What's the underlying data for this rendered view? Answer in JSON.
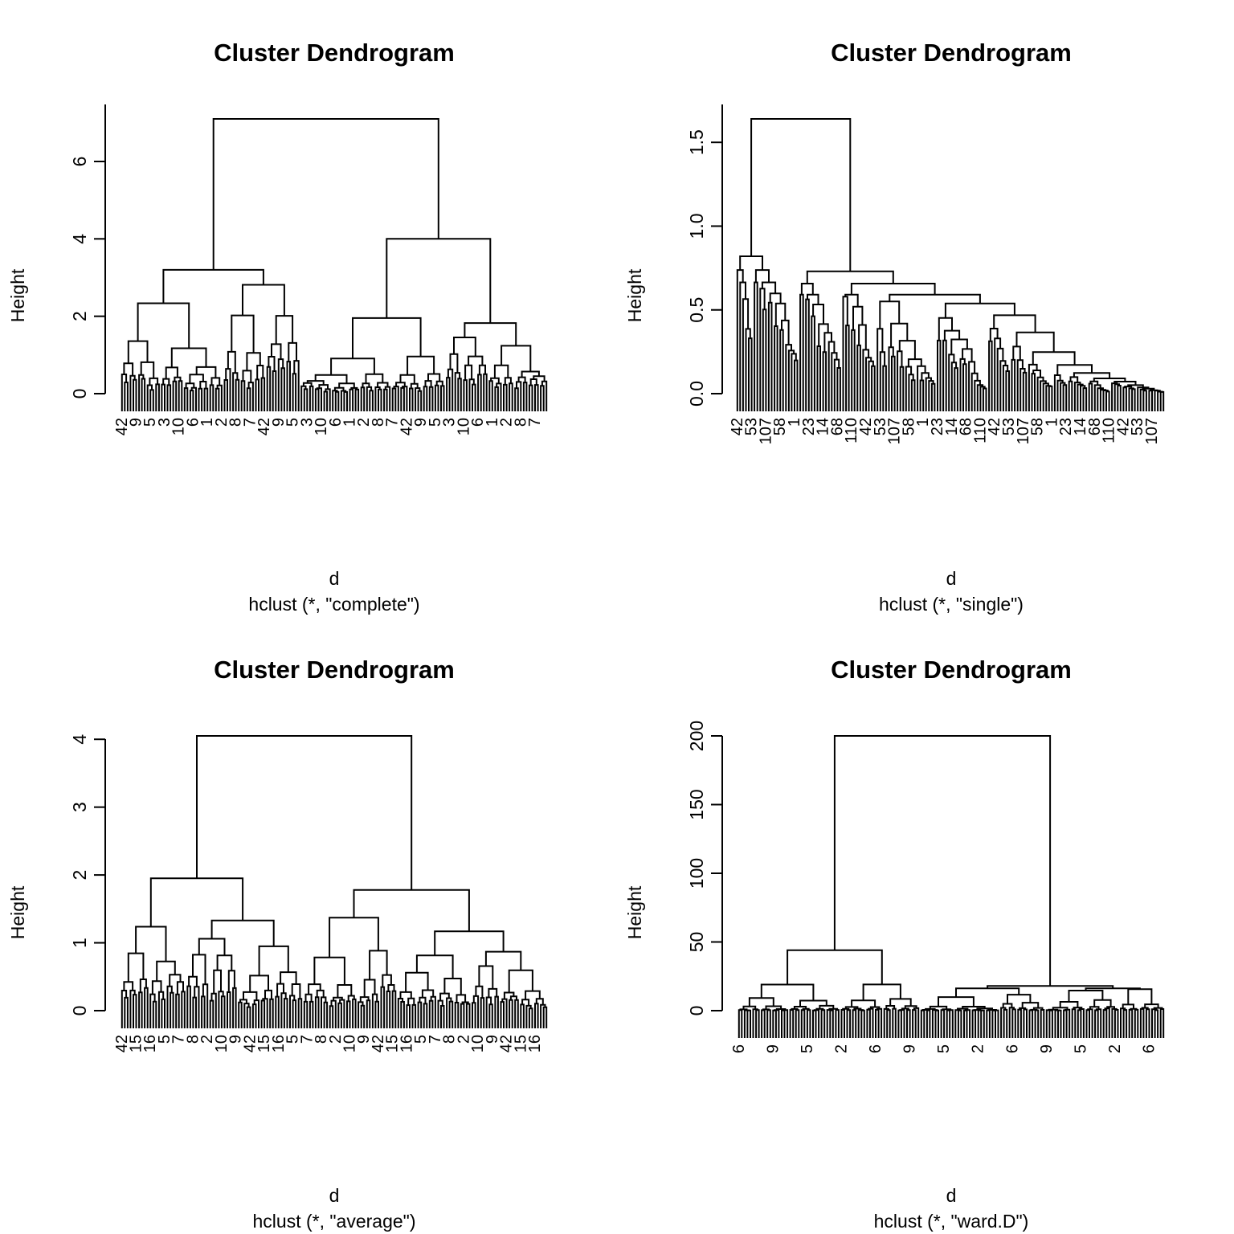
{
  "chart_data": [
    {
      "type": "dendrogram",
      "title": "Cluster Dendrogram",
      "xlabel": "d",
      "sub": "hclust (*, \"complete\")",
      "ylabel": "Height",
      "ylim": [
        0,
        7.1
      ],
      "yticks": [
        "0",
        "2",
        "4",
        "6"
      ],
      "ytick_values": [
        0,
        2,
        4,
        6
      ],
      "major_merges": [
        {
          "height": 7.1,
          "left": 1,
          "right": 2
        },
        {
          "height": 3.2,
          "left": 3,
          "right": 4
        },
        {
          "height": 4.0,
          "left": 5,
          "right": 6
        },
        {
          "height": 2.2
        },
        {
          "height": 2.4
        },
        {
          "height": 1.7
        },
        {
          "height": 1.45
        }
      ],
      "n_leaves": 150,
      "visible_leaf_labels": [
        "42",
        "9",
        "5",
        "3",
        "10",
        "6",
        "1",
        "2",
        "8",
        "7"
      ]
    },
    {
      "type": "dendrogram",
      "title": "Cluster Dendrogram",
      "xlabel": "d",
      "sub": "hclust (*, \"single\")",
      "ylabel": "Height",
      "ylim": [
        0,
        1.64
      ],
      "yticks": [
        "0.0",
        "0.5",
        "1.0",
        "1.5"
      ],
      "ytick_values": [
        0,
        0.5,
        1.0,
        1.5
      ],
      "major_merges": [
        {
          "height": 1.64
        },
        {
          "height": 0.82
        },
        {
          "height": 0.73
        },
        {
          "height": 0.63
        },
        {
          "height": 0.35
        }
      ],
      "n_leaves": 150,
      "visible_leaf_labels": [
        "42",
        "53",
        "107",
        "58",
        "1",
        "23",
        "14",
        "68",
        "110"
      ]
    },
    {
      "type": "dendrogram",
      "title": "Cluster Dendrogram",
      "xlabel": "d",
      "sub": "hclust (*, \"average\")",
      "ylabel": "Height",
      "ylim": [
        0,
        4.05
      ],
      "yticks": [
        "0",
        "1",
        "2",
        "3",
        "4"
      ],
      "ytick_values": [
        0,
        1,
        2,
        3,
        4
      ],
      "major_merges": [
        {
          "height": 4.05
        },
        {
          "height": 1.95
        },
        {
          "height": 1.78
        },
        {
          "height": 1.32
        },
        {
          "height": 1.18
        },
        {
          "height": 1.08
        }
      ],
      "n_leaves": 150,
      "visible_leaf_labels": [
        "42",
        "15",
        "16",
        "5",
        "7",
        "8",
        "2",
        "10",
        "9"
      ]
    },
    {
      "type": "dendrogram",
      "title": "Cluster Dendrogram",
      "xlabel": "d",
      "sub": "hclust (*, \"ward.D\")",
      "ylabel": "Height",
      "ylim": [
        0,
        200
      ],
      "yticks": [
        "0",
        "50",
        "100",
        "150",
        "200"
      ],
      "ytick_values": [
        0,
        50,
        100,
        150,
        200
      ],
      "major_merges": [
        {
          "height": 200
        },
        {
          "height": 44
        },
        {
          "height": 18
        },
        {
          "height": 10
        }
      ],
      "n_leaves": 150,
      "visible_leaf_labels": [
        "6",
        "9",
        "5",
        "2"
      ]
    }
  ]
}
